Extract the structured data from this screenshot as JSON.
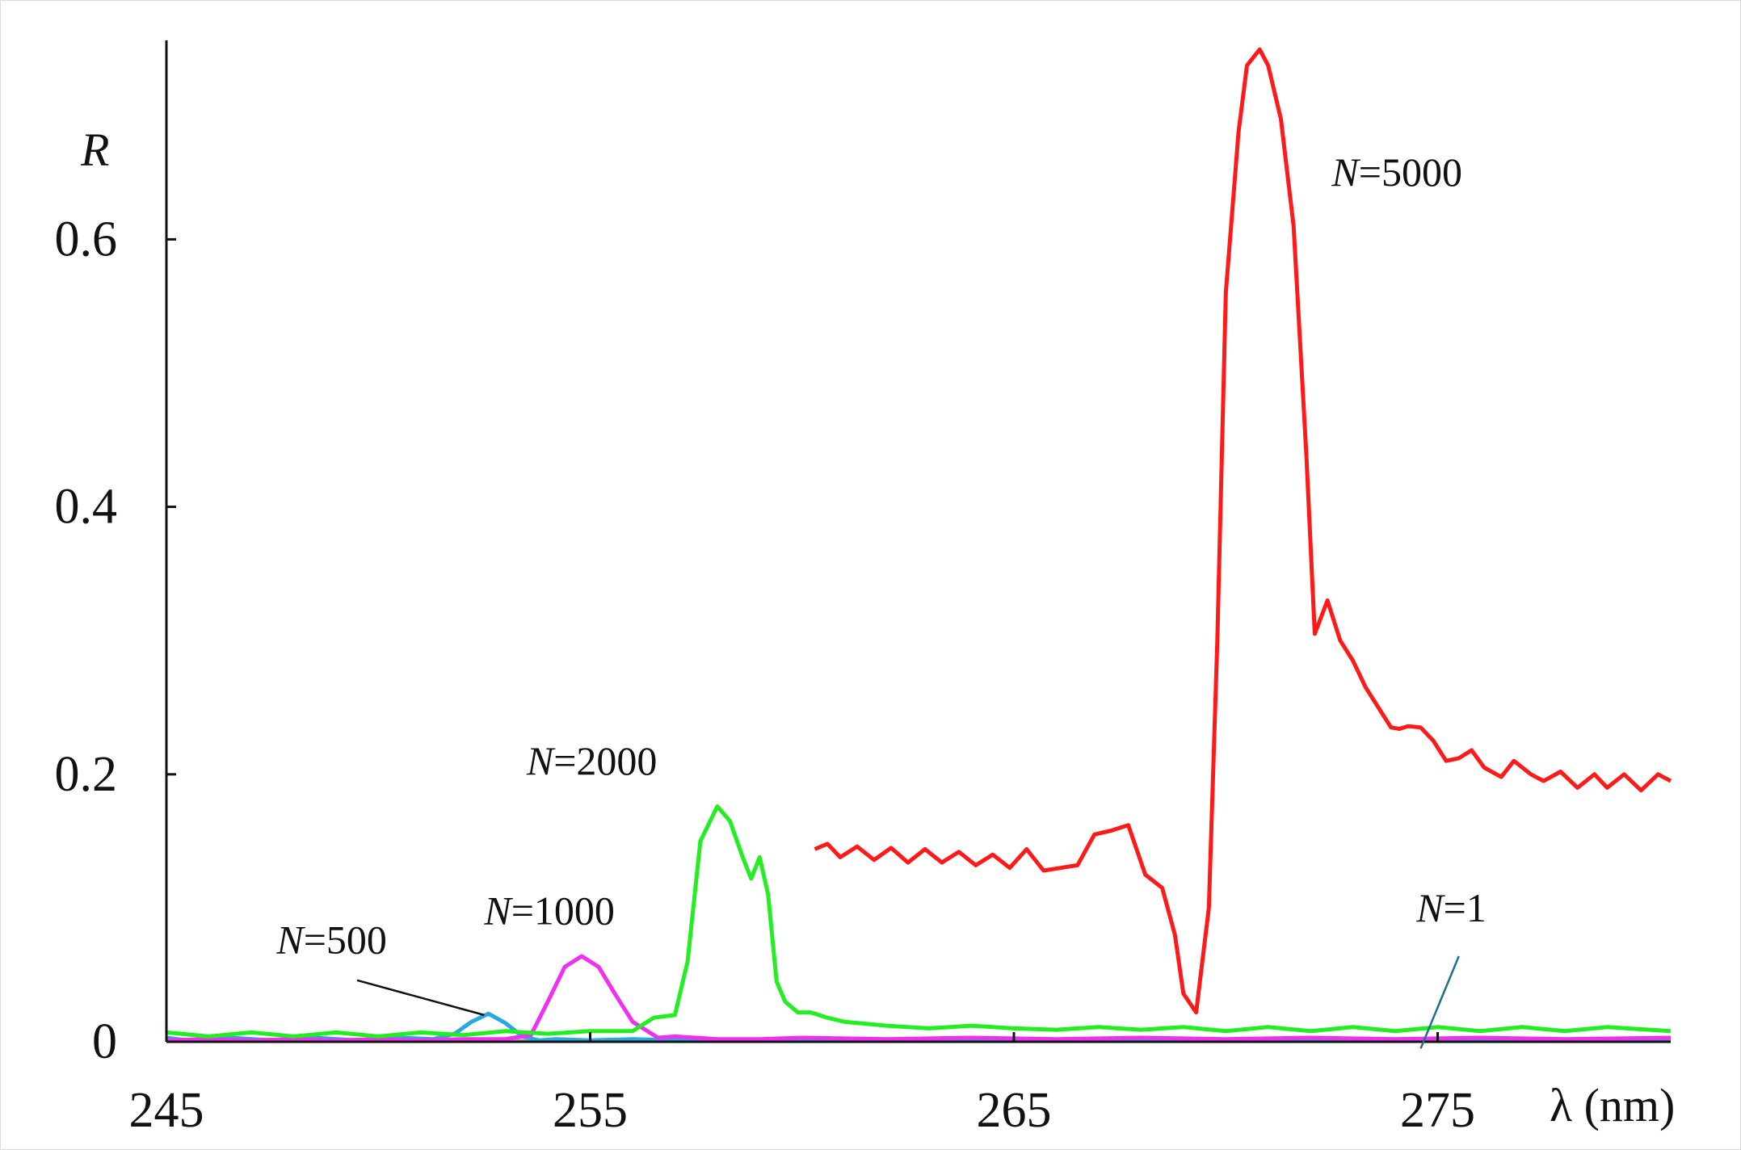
{
  "chart_data": {
    "type": "line",
    "xlabel": "λ (nm)",
    "ylabel": "R",
    "xlim": [
      245,
      280.5
    ],
    "ylim": [
      0,
      0.75
    ],
    "x_ticks": [
      245,
      255,
      265,
      275
    ],
    "y_ticks": [
      0,
      0.2,
      0.4,
      0.6
    ],
    "x_tick_labels": [
      "245",
      "255",
      "265",
      "275"
    ],
    "y_tick_labels": [
      "0",
      "0.2",
      "0.4",
      "0.6"
    ],
    "grid": false,
    "series": [
      {
        "name": "N=1",
        "color": "#9fa0a5",
        "x": [
          245,
          280.5
        ],
        "y": [
          0.001,
          0.001
        ]
      },
      {
        "name": "N=500",
        "color": "#29a8e0",
        "x": [
          245,
          245.5,
          246.5,
          247.5,
          248.5,
          249.5,
          250.5,
          251.3,
          251.8,
          252.2,
          252.6,
          253.0,
          253.4,
          253.8,
          254.2,
          255,
          256,
          257,
          258,
          260,
          265,
          270,
          275,
          280.5
        ],
        "y": [
          0.003,
          0.001,
          0.003,
          0.001,
          0.003,
          0.001,
          0.003,
          0.002,
          0.006,
          0.015,
          0.021,
          0.014,
          0.004,
          0.001,
          0.002,
          0.001,
          0.002,
          0.001,
          0.001,
          0.001,
          0.001,
          0.001,
          0.001,
          0.001
        ]
      },
      {
        "name": "N=1000",
        "color": "#f030f0",
        "x": [
          245,
          246,
          247,
          248,
          249,
          250,
          251,
          252,
          253,
          253.6,
          254.0,
          254.4,
          254.8,
          255.2,
          255.6,
          256.0,
          256.6,
          257,
          258,
          259,
          260,
          262,
          264,
          266,
          268,
          270,
          272,
          274,
          276,
          278,
          280.5
        ],
        "y": [
          0.001,
          0.002,
          0.001,
          0.002,
          0.001,
          0.002,
          0.001,
          0.002,
          0.002,
          0.005,
          0.03,
          0.056,
          0.064,
          0.056,
          0.035,
          0.015,
          0.003,
          0.004,
          0.002,
          0.002,
          0.003,
          0.002,
          0.003,
          0.002,
          0.003,
          0.002,
          0.003,
          0.002,
          0.003,
          0.002,
          0.003
        ]
      },
      {
        "name": "N=2000",
        "color": "#22ee22",
        "x": [
          245,
          246,
          247,
          248,
          249,
          250,
          251,
          252,
          253,
          254,
          255,
          256,
          256.5,
          257,
          257.3,
          257.6,
          258.0,
          258.3,
          258.6,
          258.8,
          259.0,
          259.2,
          259.4,
          259.6,
          259.9,
          260.2,
          260.6,
          261,
          262,
          263,
          264,
          265,
          266,
          267,
          268,
          269,
          270,
          271,
          272,
          273,
          274,
          275,
          276,
          277,
          278,
          279,
          280.5
        ],
        "y": [
          0.007,
          0.004,
          0.007,
          0.004,
          0.007,
          0.004,
          0.007,
          0.005,
          0.008,
          0.006,
          0.008,
          0.008,
          0.018,
          0.02,
          0.06,
          0.15,
          0.176,
          0.165,
          0.138,
          0.122,
          0.138,
          0.11,
          0.045,
          0.03,
          0.022,
          0.022,
          0.018,
          0.015,
          0.012,
          0.01,
          0.012,
          0.01,
          0.009,
          0.011,
          0.009,
          0.011,
          0.008,
          0.011,
          0.008,
          0.011,
          0.008,
          0.011,
          0.008,
          0.011,
          0.008,
          0.011,
          0.008
        ]
      },
      {
        "name": "N=5000",
        "color": "#ff1a1a",
        "x": [
          260.3,
          260.6,
          260.9,
          261.3,
          261.7,
          262.1,
          262.5,
          262.9,
          263.3,
          263.7,
          264.1,
          264.5,
          264.9,
          265.3,
          265.7,
          266.1,
          266.5,
          266.9,
          267.3,
          267.7,
          268.1,
          268.5,
          268.8,
          269.0,
          269.3,
          269.6,
          269.8,
          270.0,
          270.3,
          270.5,
          270.8,
          271.0,
          271.3,
          271.6,
          271.9,
          272.1,
          272.4,
          272.7,
          273.0,
          273.3,
          273.6,
          273.9,
          274.1,
          274.3,
          274.6,
          274.9,
          275.2,
          275.5,
          275.8,
          276.1,
          276.5,
          276.8,
          277.2,
          277.5,
          277.9,
          278.3,
          278.7,
          279.0,
          279.4,
          279.8,
          280.2,
          280.5
        ],
        "y": [
          0.144,
          0.148,
          0.138,
          0.146,
          0.136,
          0.145,
          0.134,
          0.144,
          0.134,
          0.142,
          0.132,
          0.14,
          0.13,
          0.144,
          0.128,
          0.13,
          0.132,
          0.155,
          0.158,
          0.162,
          0.125,
          0.115,
          0.08,
          0.036,
          0.022,
          0.1,
          0.3,
          0.56,
          0.68,
          0.73,
          0.742,
          0.73,
          0.69,
          0.61,
          0.44,
          0.305,
          0.33,
          0.3,
          0.285,
          0.265,
          0.25,
          0.235,
          0.234,
          0.236,
          0.235,
          0.225,
          0.21,
          0.212,
          0.218,
          0.205,
          0.198,
          0.21,
          0.2,
          0.195,
          0.202,
          0.19,
          0.2,
          0.19,
          0.2,
          0.188,
          0.2,
          0.195
        ]
      }
    ],
    "annotations": [
      {
        "italic": "N",
        "text": "=5000",
        "x": 272.5,
        "y": 0.64
      },
      {
        "italic": "N",
        "text": "=2000",
        "x": 253.5,
        "y": 0.2
      },
      {
        "italic": "N",
        "text": "=1000",
        "x": 252.5,
        "y": 0.088
      },
      {
        "italic": "N",
        "text": "=500",
        "x": 247.6,
        "y": 0.066
      },
      {
        "italic": "N",
        "text": "=1",
        "x": 274.5,
        "y": 0.09
      }
    ]
  }
}
